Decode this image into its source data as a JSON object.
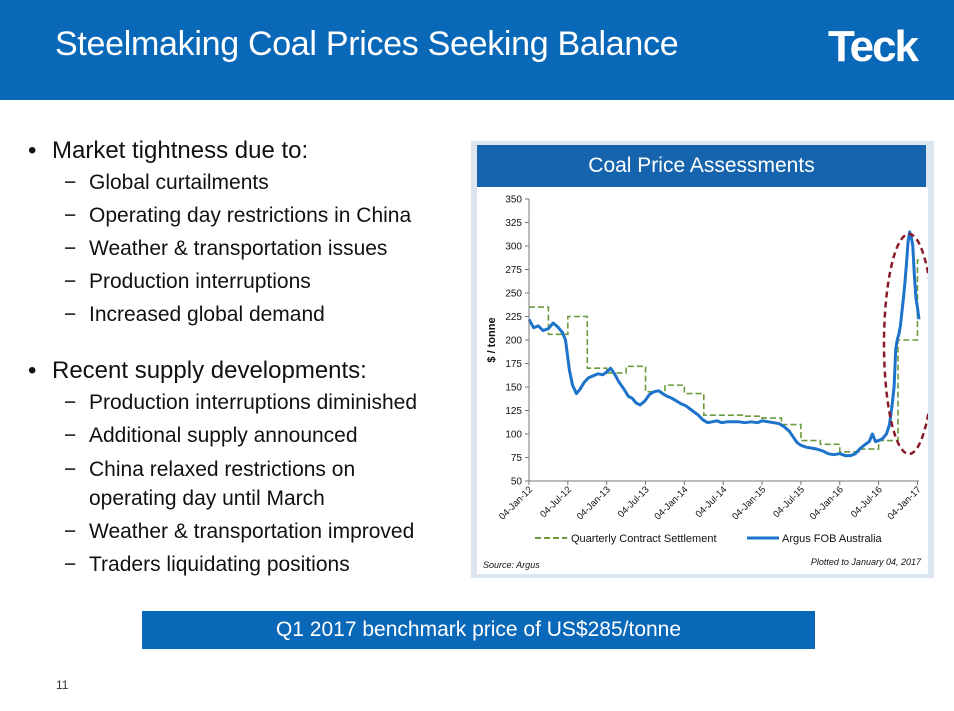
{
  "slide": {
    "title": "Steelmaking Coal Prices Seeking Balance",
    "logo": "Teck",
    "page_number": "11",
    "banner": "Q1 2017 benchmark price of US$285/tonne"
  },
  "bullets": [
    {
      "text": "Market tightness due to:",
      "subs": [
        "Global curtailments",
        "Operating day restrictions in China",
        "Weather & transportation issues",
        "Production interruptions",
        "Increased global demand"
      ]
    },
    {
      "text": "Recent supply developments:",
      "subs": [
        "Production interruptions diminished",
        "Additional supply announced",
        "China relaxed restrictions on operating day until March",
        "Weather & transportation improved",
        "Traders liquidating positions"
      ]
    }
  ],
  "chart": {
    "title": "Coal Price Assessments",
    "source": "Source: Argus",
    "plotted": "Plotted to January 04, 2017"
  },
  "chart_data": {
    "type": "line",
    "ylabel": "$ / tonne",
    "ylim": [
      50,
      350
    ],
    "yticks": [
      50,
      75,
      100,
      125,
      150,
      175,
      200,
      225,
      250,
      275,
      300,
      325,
      350
    ],
    "xlim": [
      2012.0,
      2017.02
    ],
    "xticks": [
      {
        "label": "04-Jan-12",
        "x": 2012.0
      },
      {
        "label": "04-Jul-12",
        "x": 2012.5
      },
      {
        "label": "04-Jan-13",
        "x": 2013.0
      },
      {
        "label": "04-Jul-13",
        "x": 2013.5
      },
      {
        "label": "04-Jan-14",
        "x": 2014.0
      },
      {
        "label": "04-Jul-14",
        "x": 2014.5
      },
      {
        "label": "04-Jan-15",
        "x": 2015.0
      },
      {
        "label": "04-Jul-15",
        "x": 2015.5
      },
      {
        "label": "04-Jan-16",
        "x": 2016.0
      },
      {
        "label": "04-Jul-16",
        "x": 2016.5
      },
      {
        "label": "04-Jan-17",
        "x": 2017.0
      }
    ],
    "series": [
      {
        "name": "Quarterly Contract Settlement",
        "color": "#6b9a3c",
        "style": "dashed-step",
        "points": [
          [
            2012.0,
            235
          ],
          [
            2012.25,
            206
          ],
          [
            2012.5,
            225
          ],
          [
            2012.75,
            170
          ],
          [
            2013.0,
            165
          ],
          [
            2013.25,
            172
          ],
          [
            2013.5,
            145
          ],
          [
            2013.75,
            152
          ],
          [
            2014.0,
            143
          ],
          [
            2014.25,
            120
          ],
          [
            2014.5,
            120
          ],
          [
            2014.75,
            119
          ],
          [
            2015.0,
            117
          ],
          [
            2015.25,
            110
          ],
          [
            2015.5,
            93
          ],
          [
            2015.75,
            89
          ],
          [
            2016.0,
            81
          ],
          [
            2016.25,
            84
          ],
          [
            2016.5,
            93
          ],
          [
            2016.75,
            200
          ],
          [
            2017.0,
            285
          ],
          [
            2017.02,
            285
          ]
        ]
      },
      {
        "name": "Argus FOB Australia",
        "color": "#1d73c9",
        "style": "solid",
        "points": [
          [
            2012.0,
            222
          ],
          [
            2012.06,
            213
          ],
          [
            2012.12,
            215
          ],
          [
            2012.18,
            210
          ],
          [
            2012.25,
            212
          ],
          [
            2012.31,
            218
          ],
          [
            2012.37,
            214
          ],
          [
            2012.43,
            208
          ],
          [
            2012.47,
            200
          ],
          [
            2012.52,
            168
          ],
          [
            2012.56,
            152
          ],
          [
            2012.61,
            143
          ],
          [
            2012.66,
            148
          ],
          [
            2012.71,
            155
          ],
          [
            2012.77,
            160
          ],
          [
            2012.83,
            162
          ],
          [
            2012.89,
            164
          ],
          [
            2012.95,
            163
          ],
          [
            2013.0,
            166
          ],
          [
            2013.05,
            170
          ],
          [
            2013.1,
            164
          ],
          [
            2013.16,
            155
          ],
          [
            2013.22,
            148
          ],
          [
            2013.28,
            140
          ],
          [
            2013.33,
            138
          ],
          [
            2013.38,
            133
          ],
          [
            2013.43,
            131
          ],
          [
            2013.49,
            135
          ],
          [
            2013.55,
            142
          ],
          [
            2013.61,
            145
          ],
          [
            2013.67,
            146
          ],
          [
            2013.72,
            143
          ],
          [
            2013.78,
            140
          ],
          [
            2013.84,
            138
          ],
          [
            2013.9,
            135
          ],
          [
            2013.96,
            132
          ],
          [
            2014.02,
            130
          ],
          [
            2014.1,
            125
          ],
          [
            2014.18,
            120
          ],
          [
            2014.24,
            115
          ],
          [
            2014.3,
            112
          ],
          [
            2014.36,
            113
          ],
          [
            2014.42,
            114
          ],
          [
            2014.48,
            112
          ],
          [
            2014.55,
            113
          ],
          [
            2014.62,
            113
          ],
          [
            2014.7,
            113
          ],
          [
            2014.78,
            112
          ],
          [
            2014.86,
            113
          ],
          [
            2014.94,
            112
          ],
          [
            2015.0,
            114
          ],
          [
            2015.08,
            113
          ],
          [
            2015.15,
            112
          ],
          [
            2015.22,
            111
          ],
          [
            2015.28,
            108
          ],
          [
            2015.35,
            103
          ],
          [
            2015.4,
            97
          ],
          [
            2015.45,
            91
          ],
          [
            2015.5,
            88
          ],
          [
            2015.57,
            86
          ],
          [
            2015.64,
            85
          ],
          [
            2015.7,
            84
          ],
          [
            2015.78,
            82
          ],
          [
            2015.85,
            79
          ],
          [
            2015.92,
            78
          ],
          [
            2016.0,
            79
          ],
          [
            2016.07,
            77
          ],
          [
            2016.14,
            77
          ],
          [
            2016.2,
            79
          ],
          [
            2016.27,
            85
          ],
          [
            2016.33,
            89
          ],
          [
            2016.38,
            92
          ],
          [
            2016.42,
            100
          ],
          [
            2016.46,
            92
          ],
          [
            2016.5,
            93
          ],
          [
            2016.55,
            95
          ],
          [
            2016.6,
            100
          ],
          [
            2016.64,
            110
          ],
          [
            2016.67,
            128
          ],
          [
            2016.7,
            150
          ],
          [
            2016.72,
            190
          ],
          [
            2016.74,
            200
          ],
          [
            2016.76,
            206
          ],
          [
            2016.78,
            215
          ],
          [
            2016.8,
            230
          ],
          [
            2016.82,
            245
          ],
          [
            2016.84,
            262
          ],
          [
            2016.86,
            283
          ],
          [
            2016.88,
            305
          ],
          [
            2016.9,
            315
          ],
          [
            2016.92,
            310
          ],
          [
            2016.94,
            300
          ],
          [
            2016.96,
            270
          ],
          [
            2016.98,
            245
          ],
          [
            2017.0,
            235
          ],
          [
            2017.02,
            222
          ]
        ]
      }
    ],
    "legend_placement": "bottom",
    "annotation": "dashed red ellipse around late-2016 price spike"
  }
}
